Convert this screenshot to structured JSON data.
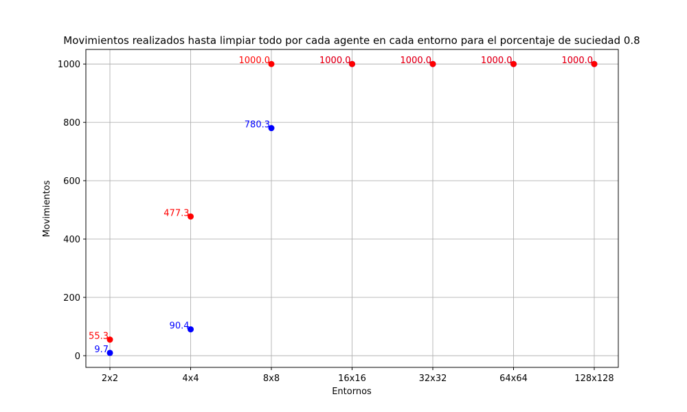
{
  "chart_data": {
    "type": "scatter",
    "title": "Movimientos realizados hasta limpiar todo por cada agente en cada entorno para el porcentaje de suciedad 0.8",
    "xlabel": "Entornos",
    "ylabel": "Movimientos",
    "categories": [
      "2x2",
      "4x4",
      "8x8",
      "16x16",
      "32x32",
      "64x64",
      "128x128"
    ],
    "ylim": [
      -40,
      1050
    ],
    "yticks": [
      0,
      200,
      400,
      600,
      800,
      1000
    ],
    "grid": true,
    "series": [
      {
        "color": "#0000ff",
        "values": [
          9.7,
          90.4,
          780.3,
          1000.0,
          1000.0,
          1000.0,
          1000.0
        ],
        "labels": [
          "9.7",
          "90.4",
          "780.3",
          "1000.0",
          "1000.0",
          "1000.0",
          "1000.0"
        ]
      },
      {
        "color": "#ff0000",
        "values": [
          55.3,
          477.3,
          1000.0,
          1000.0,
          1000.0,
          1000.0,
          1000.0
        ],
        "labels": [
          "55.3",
          "477.3",
          "1000.0",
          "1000.0",
          "1000.0",
          "1000.0",
          "1000.0"
        ]
      }
    ]
  }
}
